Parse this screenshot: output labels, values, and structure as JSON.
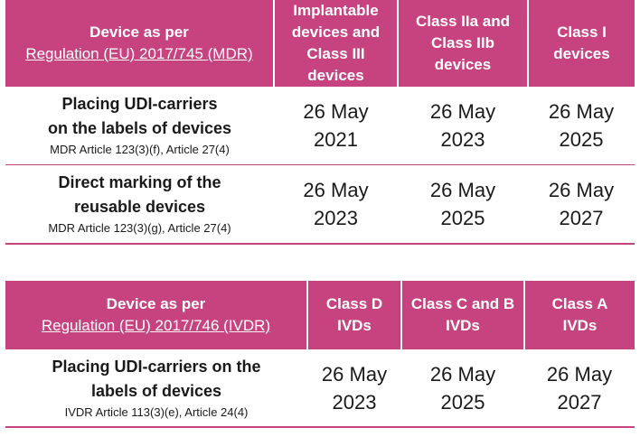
{
  "mdr": {
    "header": {
      "device_label": "Device as per",
      "regulation": "Regulation (EU) 2017/745 (MDR)",
      "col1": [
        "Implantable",
        "devices and",
        "Class III devices"
      ],
      "col2": [
        "Class IIa and",
        "Class IIb",
        "devices"
      ],
      "col3": [
        "Class I",
        "devices"
      ]
    },
    "rows": [
      {
        "title": [
          "Placing UDI-carriers",
          "on the labels of devices"
        ],
        "ref": "MDR Article 123(3)(f), Article 27(4)",
        "dates": [
          [
            "26 May",
            "2021"
          ],
          [
            "26 May",
            "2023"
          ],
          [
            "26 May",
            "2025"
          ]
        ]
      },
      {
        "title": [
          "Direct marking of the",
          "reusable devices"
        ],
        "ref": "MDR Article 123(3)(g), Article 27(4)",
        "dates": [
          [
            "26 May",
            "2023"
          ],
          [
            "26 May",
            "2025"
          ],
          [
            "26 May",
            "2027"
          ]
        ]
      }
    ]
  },
  "ivdr": {
    "header": {
      "device_label": "Device as per",
      "regulation": "Regulation (EU) 2017/746 (IVDR)",
      "col1": [
        "Class D",
        "IVDs"
      ],
      "col2": [
        "Class C and B",
        "IVDs"
      ],
      "col3": [
        "Class A",
        "IVDs"
      ]
    },
    "rows": [
      {
        "title": [
          "Placing UDI-carriers on the",
          "labels of devices"
        ],
        "ref": "IVDR Article 113(3)(e), Article 24(4)",
        "dates": [
          [
            "26 May",
            "2023"
          ],
          [
            "26 May",
            "2025"
          ],
          [
            "26 May",
            "2027"
          ]
        ]
      }
    ]
  },
  "colors": {
    "header_bg": "#c7437f",
    "header_text": "#ffffff",
    "rule": "#c7437f"
  }
}
